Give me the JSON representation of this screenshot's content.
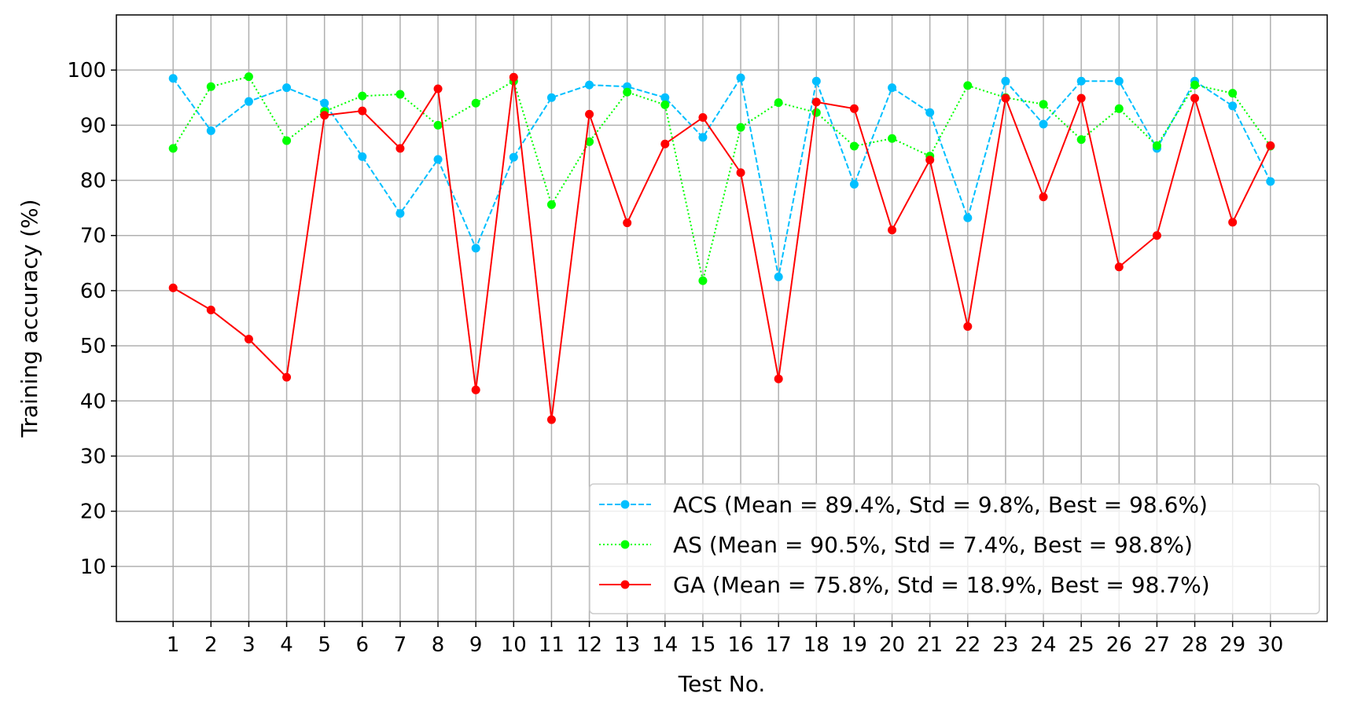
{
  "chart_data": {
    "type": "line",
    "xlabel": "Test No.",
    "ylabel": "Training accuracy (%)",
    "ylim": [
      0,
      110
    ],
    "xlim": [
      -0.5,
      31.5
    ],
    "x": [
      1,
      2,
      3,
      4,
      5,
      6,
      7,
      8,
      9,
      10,
      11,
      12,
      13,
      14,
      15,
      16,
      17,
      18,
      19,
      20,
      21,
      22,
      23,
      24,
      25,
      26,
      27,
      28,
      29,
      30
    ],
    "x_tick_labels": [
      "1",
      "2",
      "3",
      "4",
      "5",
      "6",
      "7",
      "8",
      "9",
      "10",
      "11",
      "12",
      "13",
      "14",
      "15",
      "16",
      "17",
      "18",
      "19",
      "20",
      "21",
      "22",
      "23",
      "24",
      "25",
      "26",
      "27",
      "28",
      "29",
      "30"
    ],
    "y_ticks": [
      10,
      20,
      30,
      40,
      50,
      60,
      70,
      80,
      90,
      100
    ],
    "y_tick_labels": [
      "10",
      "20",
      "30",
      "40",
      "50",
      "60",
      "70",
      "80",
      "90",
      "100"
    ],
    "grid": true,
    "legend_position": "bottom-right",
    "series": [
      {
        "name": "ACS (Mean = 89.4%, Std = 9.8%, Best = 98.6%)",
        "color": "#00bfff",
        "line_style": "dashed",
        "values": [
          98.5,
          89.0,
          94.3,
          96.8,
          94.0,
          84.3,
          74.0,
          83.8,
          67.7,
          84.2,
          95.0,
          97.3,
          97.0,
          95.0,
          87.8,
          98.6,
          62.5,
          98.0,
          79.3,
          96.8,
          92.3,
          73.2,
          98.0,
          90.2,
          98.0,
          98.0,
          85.8,
          98.0,
          93.5,
          79.8
        ]
      },
      {
        "name": "AS (Mean = 90.5%, Std = 7.4%, Best = 98.8%)",
        "color": "#00ff00",
        "line_style": "dotted",
        "values": [
          85.8,
          97.0,
          98.8,
          87.2,
          92.5,
          95.3,
          95.6,
          90.0,
          94.0,
          98.0,
          75.6,
          87.0,
          96.0,
          93.7,
          61.8,
          89.6,
          94.1,
          92.3,
          86.2,
          87.6,
          84.4,
          97.2,
          95.0,
          93.8,
          87.4,
          93.0,
          86.3,
          97.3,
          95.8,
          86.2
        ]
      },
      {
        "name": "GA (Mean = 75.8%, Std = 18.9%, Best = 98.7%)",
        "color": "#ff0000",
        "line_style": "solid",
        "values": [
          60.5,
          56.5,
          51.2,
          44.3,
          91.8,
          92.6,
          85.8,
          96.6,
          42.0,
          98.7,
          36.6,
          92.0,
          72.3,
          86.6,
          91.4,
          81.4,
          44.0,
          94.2,
          93.0,
          71.0,
          83.7,
          53.5,
          94.9,
          77.0,
          94.9,
          64.3,
          70.0,
          94.9,
          72.4,
          86.3
        ]
      }
    ]
  }
}
